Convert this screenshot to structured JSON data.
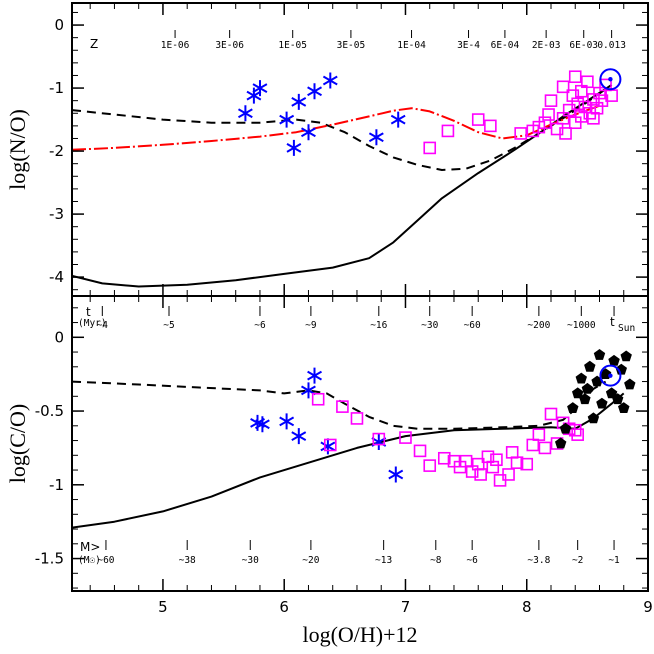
{
  "chart_data": [
    {
      "type": "scatter",
      "panel": "top",
      "xlabel": "",
      "ylabel": "log(N/O)",
      "xlim": [
        4.25,
        9.0
      ],
      "ylim": [
        -4.3,
        0.35
      ],
      "yticks": [
        0,
        -1,
        -2,
        -3,
        -4
      ],
      "grid": false,
      "top_scale": {
        "label": "Z",
        "ticks": [
          {
            "x": 5.1,
            "label": "1E-06"
          },
          {
            "x": 5.55,
            "label": "3E-06"
          },
          {
            "x": 6.07,
            "label": "1E-05"
          },
          {
            "x": 6.55,
            "label": "3E-05"
          },
          {
            "x": 7.05,
            "label": "1E-04"
          },
          {
            "x": 7.52,
            "label": "3E-4"
          },
          {
            "x": 7.82,
            "label": "6E-04"
          },
          {
            "x": 8.16,
            "label": "2E-03"
          },
          {
            "x": 8.47,
            "label": "6E-03"
          },
          {
            "x": 8.7,
            "label": "0.013"
          }
        ]
      },
      "series": [
        {
          "name": "model-solid",
          "style": "solid",
          "color": "#000000",
          "x": [
            4.25,
            4.5,
            4.8,
            5.2,
            5.6,
            6.0,
            6.4,
            6.7,
            6.9,
            7.1,
            7.3,
            7.6,
            7.9,
            8.1,
            8.3,
            8.5,
            8.7
          ],
          "y": [
            -3.98,
            -4.1,
            -4.15,
            -4.12,
            -4.05,
            -3.95,
            -3.85,
            -3.7,
            -3.45,
            -3.1,
            -2.75,
            -2.35,
            -1.98,
            -1.72,
            -1.45,
            -1.2,
            -0.95
          ]
        },
        {
          "name": "model-dashed",
          "style": "dashed",
          "color": "#000000",
          "x": [
            4.25,
            4.6,
            5.0,
            5.4,
            5.8,
            6.1,
            6.3,
            6.5,
            6.7,
            6.9,
            7.1,
            7.3,
            7.5,
            7.7,
            7.9,
            8.1,
            8.3,
            8.5,
            8.7
          ],
          "y": [
            -1.35,
            -1.42,
            -1.5,
            -1.55,
            -1.55,
            -1.5,
            -1.55,
            -1.7,
            -1.92,
            -2.1,
            -2.22,
            -2.3,
            -2.28,
            -2.15,
            -1.95,
            -1.72,
            -1.48,
            -1.22,
            -0.95
          ]
        },
        {
          "name": "model-red",
          "style": "dash-dot",
          "color": "#ff0000",
          "x": [
            4.25,
            4.6,
            5.0,
            5.4,
            5.8,
            6.1,
            6.4,
            6.7,
            6.9,
            7.05,
            7.2,
            7.4,
            7.6,
            7.8,
            8.0,
            8.2,
            8.4,
            8.6
          ],
          "y": [
            -1.98,
            -1.95,
            -1.9,
            -1.84,
            -1.77,
            -1.7,
            -1.58,
            -1.45,
            -1.36,
            -1.32,
            -1.37,
            -1.52,
            -1.7,
            -1.8,
            -1.75,
            -1.58,
            -1.42,
            -1.28
          ]
        },
        {
          "name": "stars",
          "marker": "star",
          "color": "#0000ff",
          "x": [
            5.68,
            5.75,
            5.8,
            6.02,
            6.08,
            6.12,
            6.2,
            6.25,
            6.38,
            6.76,
            6.94
          ],
          "y": [
            -1.4,
            -1.12,
            -1.0,
            -1.5,
            -1.95,
            -1.22,
            -1.7,
            -1.05,
            -0.88,
            -1.78,
            -1.5
          ]
        },
        {
          "name": "squares",
          "marker": "open-square",
          "color": "#ff00ff",
          "x": [
            7.2,
            7.35,
            7.6,
            7.7,
            7.95,
            8.05,
            8.1,
            8.15,
            8.18,
            8.2,
            8.25,
            8.3,
            8.3,
            8.32,
            8.35,
            8.38,
            8.4,
            8.4,
            8.42,
            8.45,
            8.45,
            8.48,
            8.5,
            8.52,
            8.55,
            8.55,
            8.58,
            8.6,
            8.62,
            8.65,
            8.7
          ],
          "y": [
            -1.95,
            -1.68,
            -1.5,
            -1.6,
            -1.72,
            -1.68,
            -1.62,
            -1.55,
            -1.42,
            -1.2,
            -1.65,
            -1.48,
            -0.98,
            -1.72,
            -1.35,
            -1.12,
            -1.55,
            -0.82,
            -1.25,
            -1.45,
            -1.05,
            -1.3,
            -0.9,
            -1.4,
            -1.18,
            -1.48,
            -1.32,
            -1.08,
            -1.2,
            -0.95,
            -1.12
          ]
        },
        {
          "name": "sun",
          "marker": "sun",
          "color": "#0000ff",
          "x": [
            8.69
          ],
          "y": [
            -0.86
          ]
        }
      ]
    },
    {
      "type": "scatter",
      "panel": "bottom",
      "xlabel": "log(O/H)+12",
      "ylabel": "log(C/O)",
      "xlim": [
        4.25,
        9.0
      ],
      "ylim": [
        -1.72,
        0.28
      ],
      "xticks": [
        5,
        6,
        7,
        8,
        9
      ],
      "yticks": [
        0,
        -0.5,
        -1,
        -1.5
      ],
      "grid": false,
      "time_scale": {
        "label": "t",
        "unit": "(Myr)",
        "end_label": "t",
        "end_sub": "Sun",
        "ticks": [
          {
            "x": 4.5,
            "label": "~4"
          },
          {
            "x": 5.05,
            "label": "~5"
          },
          {
            "x": 5.8,
            "label": "~6"
          },
          {
            "x": 6.22,
            "label": "~9"
          },
          {
            "x": 6.78,
            "label": "~16"
          },
          {
            "x": 7.2,
            "label": "~30"
          },
          {
            "x": 7.55,
            "label": "~60"
          },
          {
            "x": 8.1,
            "label": "~200"
          },
          {
            "x": 8.45,
            "label": "~1000"
          }
        ]
      },
      "mass_scale": {
        "label": "M>",
        "unit": "(M☉)",
        "ticks": [
          {
            "x": 4.53,
            "label": "~60"
          },
          {
            "x": 5.2,
            "label": "~38"
          },
          {
            "x": 5.72,
            "label": "~30"
          },
          {
            "x": 6.22,
            "label": "~20"
          },
          {
            "x": 6.82,
            "label": "~13"
          },
          {
            "x": 7.25,
            "label": "~8"
          },
          {
            "x": 7.55,
            "label": "~6"
          },
          {
            "x": 8.1,
            "label": "~3.8"
          },
          {
            "x": 8.42,
            "label": "~2"
          },
          {
            "x": 8.72,
            "label": "~1"
          }
        ]
      },
      "series": [
        {
          "name": "model-solid",
          "style": "solid",
          "color": "#000000",
          "x": [
            4.25,
            4.6,
            5.0,
            5.4,
            5.8,
            6.2,
            6.6,
            7.0,
            7.4,
            7.8,
            8.2,
            8.4,
            8.55,
            8.7,
            8.8
          ],
          "y": [
            -1.29,
            -1.25,
            -1.18,
            -1.08,
            -0.95,
            -0.85,
            -0.75,
            -0.67,
            -0.63,
            -0.62,
            -0.61,
            -0.62,
            -0.55,
            -0.45,
            -0.38
          ]
        },
        {
          "name": "model-dashed",
          "style": "dashed",
          "color": "#000000",
          "x": [
            4.25,
            4.8,
            5.3,
            5.8,
            6.0,
            6.2,
            6.35,
            6.5,
            6.7,
            6.9,
            7.1,
            7.4,
            7.8,
            8.1,
            8.3,
            8.45,
            8.55,
            8.65
          ],
          "y": [
            -0.3,
            -0.32,
            -0.34,
            -0.36,
            -0.38,
            -0.36,
            -0.38,
            -0.45,
            -0.54,
            -0.6,
            -0.62,
            -0.62,
            -0.61,
            -0.6,
            -0.56,
            -0.45,
            -0.35,
            -0.3
          ]
        },
        {
          "name": "stars",
          "marker": "star",
          "color": "#0000ff",
          "x": [
            5.78,
            5.82,
            6.02,
            6.12,
            6.2,
            6.25,
            6.36,
            6.78,
            6.92
          ],
          "y": [
            -0.58,
            -0.59,
            -0.57,
            -0.67,
            -0.36,
            -0.26,
            -0.74,
            -0.71,
            -0.93
          ]
        },
        {
          "name": "squares",
          "marker": "open-square",
          "color": "#ff00ff",
          "x": [
            6.28,
            6.38,
            6.48,
            6.6,
            6.78,
            7.0,
            7.12,
            7.2,
            7.32,
            7.4,
            7.45,
            7.5,
            7.55,
            7.6,
            7.62,
            7.68,
            7.72,
            7.75,
            7.78,
            7.85,
            7.88,
            7.92,
            8.0,
            8.05,
            8.1,
            8.15,
            8.2,
            8.25,
            8.3,
            8.35,
            8.4,
            8.42
          ],
          "y": [
            -0.42,
            -0.73,
            -0.47,
            -0.55,
            -0.69,
            -0.68,
            -0.77,
            -0.87,
            -0.82,
            -0.84,
            -0.88,
            -0.84,
            -0.91,
            -0.86,
            -0.93,
            -0.81,
            -0.88,
            -0.83,
            -0.97,
            -0.93,
            -0.78,
            -0.85,
            -0.86,
            -0.73,
            -0.66,
            -0.75,
            -0.52,
            -0.72,
            -0.58,
            -0.62,
            -0.63,
            -0.66
          ]
        },
        {
          "name": "pentagons",
          "marker": "filled-pentagon",
          "color": "#000000",
          "x": [
            8.28,
            8.32,
            8.38,
            8.42,
            8.45,
            8.48,
            8.5,
            8.52,
            8.55,
            8.58,
            8.6,
            8.62,
            8.65,
            8.7,
            8.72,
            8.75,
            8.78,
            8.8,
            8.82,
            8.85
          ],
          "y": [
            -0.72,
            -0.62,
            -0.48,
            -0.38,
            -0.28,
            -0.42,
            -0.35,
            -0.2,
            -0.55,
            -0.3,
            -0.12,
            -0.45,
            -0.25,
            -0.38,
            -0.16,
            -0.42,
            -0.22,
            -0.48,
            -0.13,
            -0.32
          ]
        },
        {
          "name": "sun",
          "marker": "sun",
          "color": "#0000ff",
          "x": [
            8.69
          ],
          "y": [
            -0.26
          ]
        }
      ]
    }
  ]
}
